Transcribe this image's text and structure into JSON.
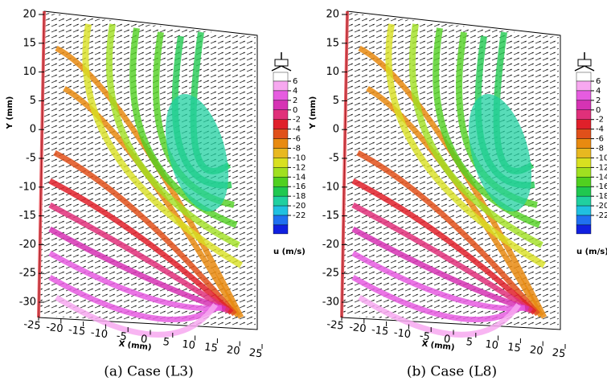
{
  "chart_data": [
    {
      "type": "isosurface",
      "caption": "(a) Case (L3)",
      "xlabel": "X (mm)",
      "ylabel": "Y (mm)",
      "xlim": [
        -25,
        25
      ],
      "xticks": [
        -25,
        -20,
        -15,
        -10,
        -5,
        0,
        5,
        10,
        15,
        20,
        25
      ],
      "ylim": [
        -30,
        20
      ],
      "yticks": [
        20,
        15,
        10,
        5,
        0,
        -5,
        -10,
        -15,
        -20,
        -25,
        -30
      ],
      "colorbar": {
        "label": "u (m/s)",
        "ticks": [
          6,
          4,
          2,
          0,
          -2,
          -4,
          -6,
          -8,
          -10,
          -12,
          -14,
          -16,
          -18,
          -20,
          -22
        ],
        "colors": [
          "#ffffff",
          "#f7a8f0",
          "#e65ce0",
          "#d633b4",
          "#e0307a",
          "#e0202a",
          "#e0501a",
          "#e88a10",
          "#e8b820",
          "#d8e020",
          "#a0e020",
          "#50d020",
          "#20c850",
          "#20d0a0",
          "#20c0e0",
          "#2070f0",
          "#1020e0"
        ]
      }
    },
    {
      "type": "isosurface",
      "caption": "(b) Case (L8)",
      "xlabel": "X (mm)",
      "ylabel": "Y (mm)",
      "xlim": [
        -25,
        25
      ],
      "xticks": [
        -25,
        -20,
        -15,
        -10,
        -5,
        0,
        5,
        10,
        15,
        20,
        25
      ],
      "ylim": [
        -30,
        20
      ],
      "yticks": [
        20,
        15,
        10,
        5,
        0,
        -5,
        -10,
        -15,
        -20,
        -25,
        -30
      ],
      "colorbar": {
        "label": "u (m/s)",
        "ticks": [
          6,
          4,
          2,
          0,
          -2,
          -4,
          -6,
          -8,
          -10,
          -12,
          -14,
          -16,
          -18,
          -20,
          -22
        ],
        "colors": [
          "#ffffff",
          "#f7a8f0",
          "#e65ce0",
          "#d633b4",
          "#e0307a",
          "#e0202a",
          "#e0501a",
          "#e88a10",
          "#e8b820",
          "#d8e020",
          "#a0e020",
          "#50d020",
          "#20c850",
          "#20d0a0",
          "#20c0e0",
          "#2070f0",
          "#1020e0"
        ]
      }
    }
  ]
}
